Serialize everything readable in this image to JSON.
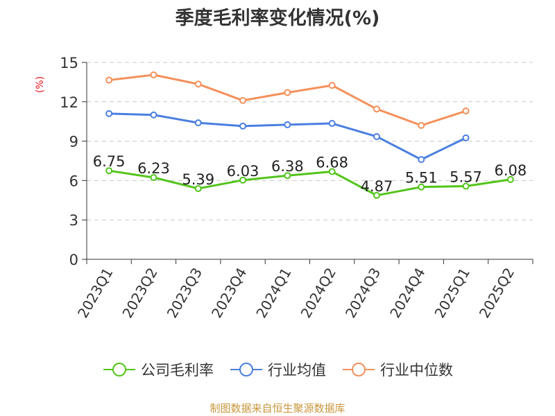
{
  "chart_data": {
    "type": "line",
    "title": "季度毛利率变化情况(%)",
    "unit": "(%)",
    "categories": [
      "2023Q1",
      "2023Q2",
      "2023Q3",
      "2023Q4",
      "2024Q1",
      "2024Q2",
      "2024Q3",
      "2024Q4",
      "2025Q1",
      "2025Q2"
    ],
    "ylim": [
      0,
      15
    ],
    "yticks": [
      0,
      3,
      6,
      9,
      12,
      15
    ],
    "grid": true,
    "legend_position": "bottom",
    "series": [
      {
        "name": "公司毛利率",
        "color": "#52c41a",
        "show_labels": true,
        "values": [
          6.75,
          6.23,
          5.39,
          6.03,
          6.38,
          6.68,
          4.87,
          5.51,
          5.57,
          6.08
        ]
      },
      {
        "name": "行业均值",
        "color": "#4a7fe0",
        "show_labels": false,
        "values": [
          11.1,
          11.0,
          10.4,
          10.15,
          10.25,
          10.35,
          9.35,
          7.6,
          9.25,
          null
        ]
      },
      {
        "name": "行业中位数",
        "color": "#f4905a",
        "show_labels": false,
        "values": [
          13.65,
          14.05,
          13.35,
          12.1,
          12.7,
          13.25,
          11.45,
          10.2,
          11.3,
          null
        ]
      }
    ]
  },
  "source": "制图数据来自恒生聚源数据库"
}
